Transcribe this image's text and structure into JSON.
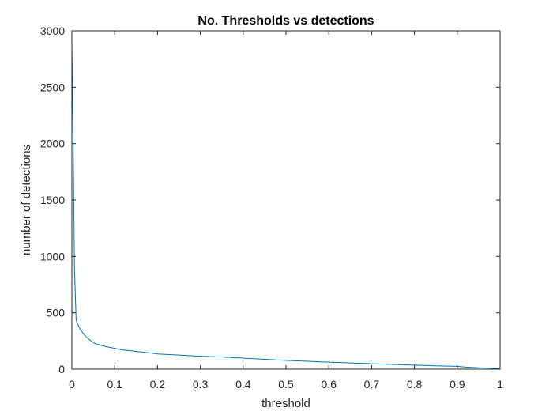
{
  "chart_data": {
    "type": "line",
    "title": "No. Thresholds vs detections",
    "xlabel": "threshold",
    "ylabel": "number of detections",
    "xlim": [
      0,
      1
    ],
    "ylim": [
      0,
      3000
    ],
    "xticks": [
      0,
      0.1,
      0.2,
      0.3,
      0.4,
      0.5,
      0.6,
      0.7,
      0.8,
      0.9,
      1
    ],
    "xtick_labels": [
      "0",
      "0.1",
      "0.2",
      "0.3",
      "0.4",
      "0.5",
      "0.6",
      "0.7",
      "0.8",
      "0.9",
      "1"
    ],
    "yticks": [
      0,
      500,
      1000,
      1500,
      2000,
      2500,
      3000
    ],
    "ytick_labels": [
      "0",
      "500",
      "1000",
      "1500",
      "2000",
      "2500",
      "3000"
    ],
    "grid": false,
    "box": true,
    "series": [
      {
        "color": "#0072BD",
        "x": [
          0,
          0.003,
          0.006,
          0.01,
          0.02,
          0.03,
          0.04,
          0.05,
          0.06,
          0.08,
          0.1,
          0.12,
          0.15,
          0.18,
          0.2,
          0.25,
          0.3,
          0.35,
          0.4,
          0.45,
          0.5,
          0.55,
          0.6,
          0.65,
          0.7,
          0.75,
          0.8,
          0.85,
          0.9,
          0.92,
          0.95,
          0.98,
          1.0
        ],
        "y": [
          2880,
          2000,
          900,
          430,
          350,
          300,
          265,
          235,
          220,
          200,
          185,
          170,
          158,
          145,
          135,
          125,
          115,
          108,
          98,
          88,
          78,
          70,
          62,
          55,
          48,
          42,
          36,
          30,
          25,
          18,
          12,
          8,
          3
        ]
      }
    ]
  }
}
